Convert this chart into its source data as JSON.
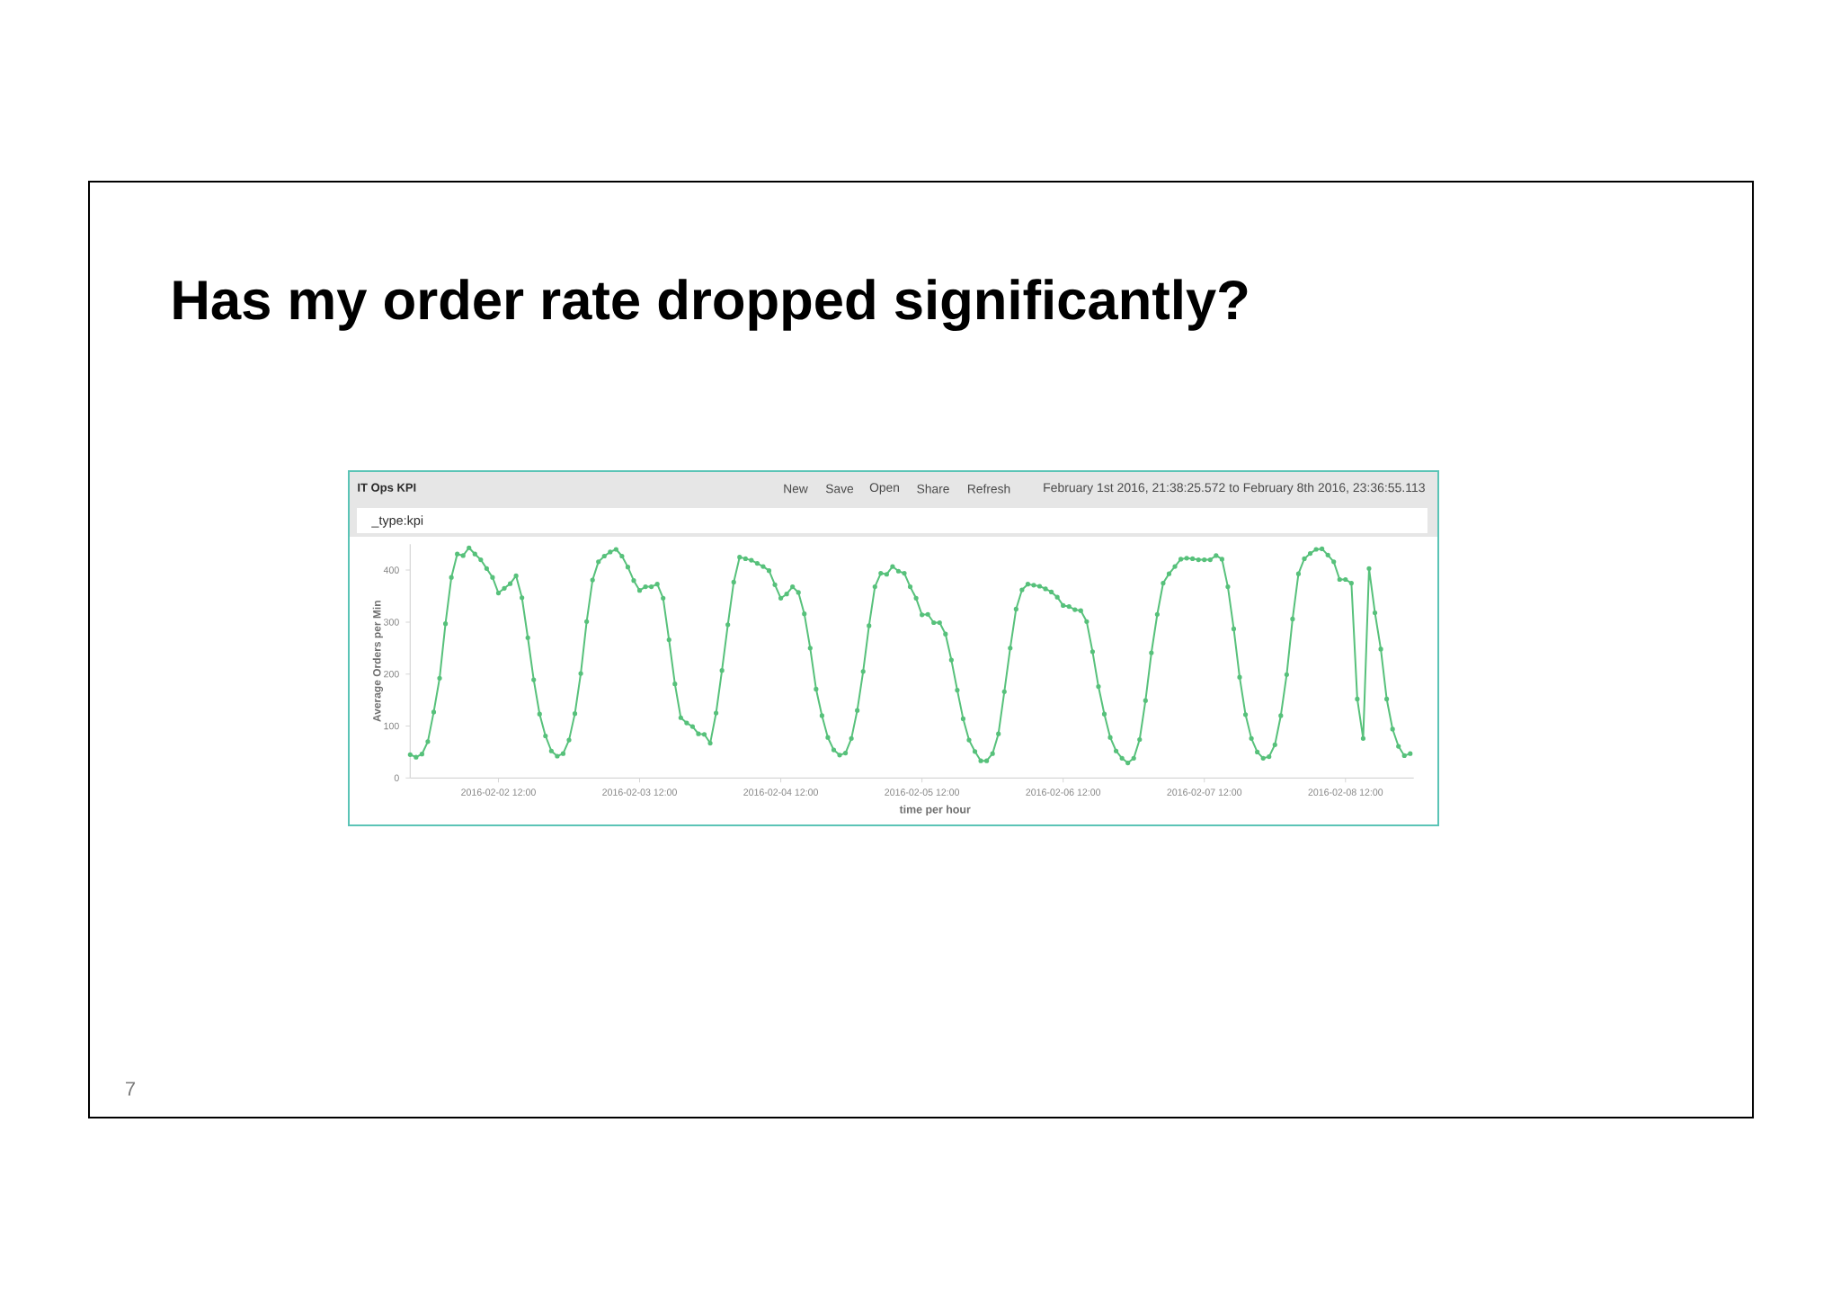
{
  "chart_data": {
    "type": "line",
    "title": "Has my order rate dropped significantly?",
    "xlabel": "time per hour",
    "ylabel": "Average Orders per Min",
    "annotations": [
      "IT Ops KPI",
      "New",
      "Save",
      "Open",
      "Share",
      "Refresh",
      "February 1st 2016, 21:38:25.572 to February 8th 2016, 23:36:55.113",
      "_type:kpi",
      "7"
    ],
    "color": "#57c17b",
    "marker": "circle",
    "line_style": "solid",
    "xlim": [
      "2016-02-01T21:00",
      "2016-02-08T23:36"
    ],
    "ylim": [
      0,
      450
    ],
    "xticks": [
      {
        "value": "2016-02-02T12:00",
        "label": "2016-02-02 12:00"
      },
      {
        "value": "2016-02-03T12:00",
        "label": "2016-02-03 12:00"
      },
      {
        "value": "2016-02-04T12:00",
        "label": "2016-02-04 12:00"
      },
      {
        "value": "2016-02-05T12:00",
        "label": "2016-02-05 12:00"
      },
      {
        "value": "2016-02-06T12:00",
        "label": "2016-02-06 12:00"
      },
      {
        "value": "2016-02-07T12:00",
        "label": "2016-02-07 12:00"
      },
      {
        "value": "2016-02-08T12:00",
        "label": "2016-02-08 12:00"
      }
    ],
    "yticks": [
      0,
      100,
      200,
      300,
      400
    ],
    "x": [
      "2016-02-01T21:00",
      "2016-02-01T22:00",
      "2016-02-01T23:00",
      "2016-02-02T00:00",
      "2016-02-02T01:00",
      "2016-02-02T02:00",
      "2016-02-02T03:00",
      "2016-02-02T04:00",
      "2016-02-02T05:00",
      "2016-02-02T06:00",
      "2016-02-02T07:00",
      "2016-02-02T08:00",
      "2016-02-02T09:00",
      "2016-02-02T10:00",
      "2016-02-02T11:00",
      "2016-02-02T12:00",
      "2016-02-02T13:00",
      "2016-02-02T14:00",
      "2016-02-02T15:00",
      "2016-02-02T16:00",
      "2016-02-02T17:00",
      "2016-02-02T18:00",
      "2016-02-02T19:00",
      "2016-02-02T20:00",
      "2016-02-02T21:00",
      "2016-02-02T22:00",
      "2016-02-02T23:00",
      "2016-02-03T00:00",
      "2016-02-03T01:00",
      "2016-02-03T02:00",
      "2016-02-03T03:00",
      "2016-02-03T04:00",
      "2016-02-03T05:00",
      "2016-02-03T06:00",
      "2016-02-03T07:00",
      "2016-02-03T08:00",
      "2016-02-03T09:00",
      "2016-02-03T10:00",
      "2016-02-03T11:00",
      "2016-02-03T12:00",
      "2016-02-03T13:00",
      "2016-02-03T14:00",
      "2016-02-03T15:00",
      "2016-02-03T16:00",
      "2016-02-03T17:00",
      "2016-02-03T18:00",
      "2016-02-03T19:00",
      "2016-02-03T20:00",
      "2016-02-03T21:00",
      "2016-02-03T22:00",
      "2016-02-03T23:00",
      "2016-02-04T00:00",
      "2016-02-04T01:00",
      "2016-02-04T02:00",
      "2016-02-04T03:00",
      "2016-02-04T04:00",
      "2016-02-04T05:00",
      "2016-02-04T06:00",
      "2016-02-04T07:00",
      "2016-02-04T08:00",
      "2016-02-04T09:00",
      "2016-02-04T10:00",
      "2016-02-04T11:00",
      "2016-02-04T12:00",
      "2016-02-04T13:00",
      "2016-02-04T14:00",
      "2016-02-04T15:00",
      "2016-02-04T16:00",
      "2016-02-04T17:00",
      "2016-02-04T18:00",
      "2016-02-04T19:00",
      "2016-02-04T20:00",
      "2016-02-04T21:00",
      "2016-02-04T22:00",
      "2016-02-04T23:00",
      "2016-02-05T00:00",
      "2016-02-05T01:00",
      "2016-02-05T02:00",
      "2016-02-05T03:00",
      "2016-02-05T04:00",
      "2016-02-05T05:00",
      "2016-02-05T06:00",
      "2016-02-05T07:00",
      "2016-02-05T08:00",
      "2016-02-05T09:00",
      "2016-02-05T10:00",
      "2016-02-05T11:00",
      "2016-02-05T12:00",
      "2016-02-05T13:00",
      "2016-02-05T14:00",
      "2016-02-05T15:00",
      "2016-02-05T16:00",
      "2016-02-05T17:00",
      "2016-02-05T18:00",
      "2016-02-05T19:00",
      "2016-02-05T20:00",
      "2016-02-05T21:00",
      "2016-02-05T22:00",
      "2016-02-05T23:00",
      "2016-02-06T00:00",
      "2016-02-06T01:00",
      "2016-02-06T02:00",
      "2016-02-06T03:00",
      "2016-02-06T04:00",
      "2016-02-06T05:00",
      "2016-02-06T06:00",
      "2016-02-06T07:00",
      "2016-02-06T08:00",
      "2016-02-06T09:00",
      "2016-02-06T10:00",
      "2016-02-06T11:00",
      "2016-02-06T12:00",
      "2016-02-06T13:00",
      "2016-02-06T14:00",
      "2016-02-06T15:00",
      "2016-02-06T16:00",
      "2016-02-06T17:00",
      "2016-02-06T18:00",
      "2016-02-06T19:00",
      "2016-02-06T20:00",
      "2016-02-06T21:00",
      "2016-02-06T22:00",
      "2016-02-06T23:00",
      "2016-02-07T00:00",
      "2016-02-07T01:00",
      "2016-02-07T02:00",
      "2016-02-07T03:00",
      "2016-02-07T04:00",
      "2016-02-07T05:00",
      "2016-02-07T06:00",
      "2016-02-07T07:00",
      "2016-02-07T08:00",
      "2016-02-07T09:00",
      "2016-02-07T10:00",
      "2016-02-07T11:00",
      "2016-02-07T12:00",
      "2016-02-07T13:00",
      "2016-02-07T14:00",
      "2016-02-07T15:00",
      "2016-02-07T16:00",
      "2016-02-07T17:00",
      "2016-02-07T18:00",
      "2016-02-07T19:00",
      "2016-02-07T20:00",
      "2016-02-07T21:00",
      "2016-02-07T22:00",
      "2016-02-07T23:00",
      "2016-02-08T00:00",
      "2016-02-08T01:00",
      "2016-02-08T02:00",
      "2016-02-08T03:00",
      "2016-02-08T04:00",
      "2016-02-08T05:00",
      "2016-02-08T06:00",
      "2016-02-08T07:00",
      "2016-02-08T08:00",
      "2016-02-08T09:00",
      "2016-02-08T10:00",
      "2016-02-08T11:00",
      "2016-02-08T12:00",
      "2016-02-08T13:00",
      "2016-02-08T14:00",
      "2016-02-08T15:00",
      "2016-02-08T16:00",
      "2016-02-08T17:00",
      "2016-02-08T18:00",
      "2016-02-08T19:00",
      "2016-02-08T20:00",
      "2016-02-08T21:00",
      "2016-02-08T22:00",
      "2016-02-08T23:00"
    ],
    "values": [
      45,
      40,
      46,
      70,
      127,
      192,
      297,
      386,
      431,
      428,
      443,
      431,
      420,
      403,
      386,
      356,
      365,
      374,
      389,
      347,
      270,
      189,
      123,
      81,
      52,
      42,
      47,
      73,
      124,
      201,
      301,
      381,
      416,
      427,
      435,
      440,
      427,
      406,
      380,
      361,
      368,
      368,
      373,
      346,
      266,
      181,
      116,
      106,
      99,
      85,
      84,
      67,
      125,
      207,
      295,
      377,
      425,
      422,
      419,
      413,
      407,
      399,
      372,
      346,
      354,
      368,
      357,
      316,
      250,
      171,
      120,
      78,
      54,
      44,
      48,
      76,
      130,
      205,
      293,
      368,
      394,
      392,
      407,
      398,
      394,
      368,
      346,
      314,
      315,
      299,
      299,
      277,
      227,
      169,
      114,
      73,
      51,
      33,
      33,
      47,
      85,
      166,
      250,
      325,
      362,
      373,
      371,
      369,
      364,
      358,
      348,
      332,
      330,
      324,
      322,
      301,
      243,
      176,
      123,
      78,
      52,
      38,
      29,
      38,
      74,
      149,
      241,
      315,
      375,
      393,
      407,
      421,
      423,
      422,
      420,
      420,
      420,
      428,
      421,
      368,
      287,
      194,
      122,
      76,
      50,
      38,
      41,
      64,
      120,
      199,
      306,
      393,
      422,
      432,
      440,
      441,
      429,
      416,
      382,
      382,
      375,
      152,
      76,
      403,
      318,
      248,
      152,
      94,
      61,
      43,
      47
    ]
  }
}
